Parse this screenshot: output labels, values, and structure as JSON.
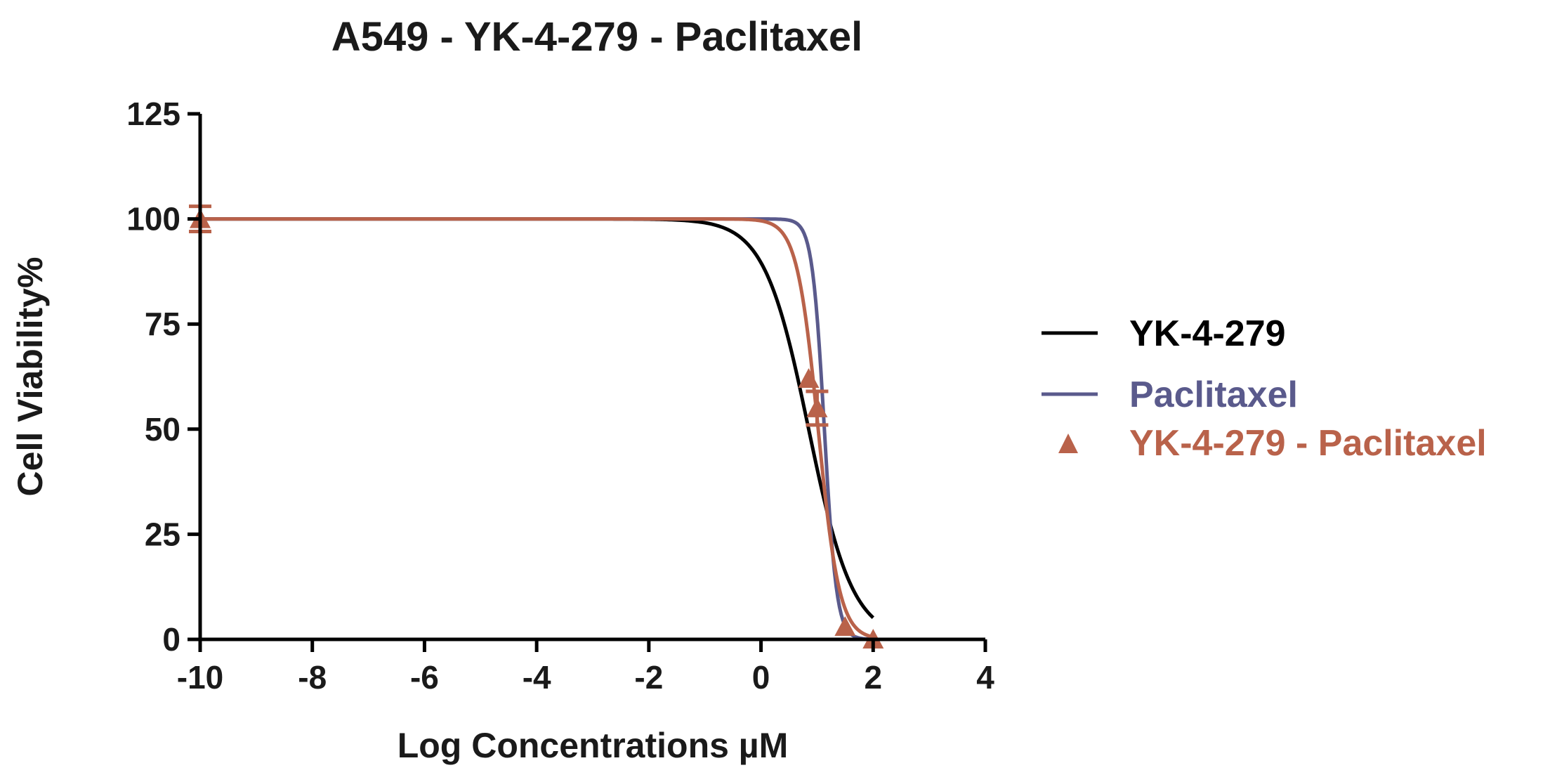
{
  "chart_data": {
    "type": "line",
    "title": "A549 - YK-4-279 - Paclitaxel",
    "xlabel": "Log Concentrations µM",
    "ylabel": "Cell Viability%",
    "xlim": [
      -10,
      4
    ],
    "ylim": [
      0,
      125
    ],
    "x_ticks": [
      -10,
      -8,
      -6,
      -4,
      -2,
      0,
      2,
      4
    ],
    "y_ticks": [
      0,
      25,
      50,
      75,
      100,
      125
    ],
    "x_tick_labels": [
      "-10",
      "-8",
      "-6",
      "-4",
      "-2",
      "0",
      "2",
      "4"
    ],
    "y_tick_labels": [
      "0",
      "25",
      "50",
      "75",
      "100",
      "125"
    ],
    "grid": false,
    "legend_position": "right",
    "series": [
      {
        "name": "YK-4-279",
        "kind": "fit-curve",
        "color": "#000000",
        "top": 100,
        "bottom": 0,
        "log_ic50": 0.85,
        "hill_slope": -1.1,
        "x_range": [
          -10,
          2
        ]
      },
      {
        "name": "Paclitaxel",
        "kind": "fit-curve",
        "color": "#5a5a8c",
        "top": 100,
        "bottom": 0,
        "log_ic50": 1.13,
        "hill_slope": -4.0,
        "x_range": [
          -10,
          2
        ]
      },
      {
        "name": "YK-4-279 - Paclitaxel",
        "kind": "points-with-fit",
        "color": "#b9624a",
        "marker": "triangle",
        "top": 100,
        "bottom": 0,
        "log_ic50": 1.02,
        "hill_slope": -2.3,
        "x_range": [
          -10,
          2
        ],
        "points": [
          {
            "x": -10,
            "y": 100,
            "err": 3
          },
          {
            "x": 0.85,
            "y": 62,
            "err": 0
          },
          {
            "x": 1.0,
            "y": 55,
            "err": 4
          },
          {
            "x": 1.5,
            "y": 3,
            "err": 0
          },
          {
            "x": 2.0,
            "y": 0,
            "err": 0
          }
        ]
      }
    ]
  }
}
